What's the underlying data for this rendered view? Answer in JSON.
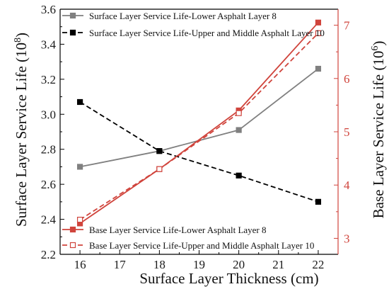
{
  "chart_data": {
    "type": "line",
    "xlabel": "Surface Layer Thickness (cm)",
    "ylabel_left": "Surface Layer Service Life (10",
    "ylabel_left_exp": "8",
    "ylabel_left_close": ")",
    "ylabel_right": "Base Layer Service Life (10",
    "ylabel_right_exp": "6",
    "ylabel_right_close": ")",
    "xlim": [
      15.5,
      22.5
    ],
    "xticks": [
      16,
      17,
      18,
      19,
      20,
      21,
      22
    ],
    "ylim_left": [
      2.2,
      3.6
    ],
    "yticks_left": [
      "2.2",
      "2.4",
      "2.6",
      "2.8",
      "3.0",
      "3.2",
      "3.4",
      "3.6"
    ],
    "ylim_right": [
      2.7,
      7.3
    ],
    "yticks_right": [
      "3",
      "4",
      "5",
      "6",
      "7"
    ],
    "x": [
      16,
      18,
      20,
      22
    ],
    "series": [
      {
        "name": "Surface Layer Service Life-Lower Asphalt Layer 8",
        "axis": "left",
        "values": [
          2.7,
          2.79,
          2.91,
          3.26
        ],
        "color": "#808080",
        "dash": "solid",
        "marker": "filled-square"
      },
      {
        "name": "Surface Layer Service Life-Upper and Middle Asphalt Layer 10",
        "axis": "left",
        "values": [
          3.07,
          2.79,
          2.65,
          2.5
        ],
        "color": "#000000",
        "dash": "dashed",
        "marker": "filled-square"
      },
      {
        "name": "Base Layer Service Life-Lower Asphalt Layer 8",
        "axis": "right",
        "values": [
          3.28,
          4.3,
          5.4,
          7.05
        ],
        "color": "#d0443c",
        "dash": "solid",
        "marker": "filled-square"
      },
      {
        "name": "Base Layer Service Life-Upper and Middle Asphalt Layer 10",
        "axis": "right",
        "values": [
          3.35,
          4.3,
          5.35,
          6.85
        ],
        "color": "#d0443c",
        "dash": "dashed",
        "marker": "open-square"
      }
    ],
    "legend_top": "top-left",
    "legend_bottom": "bottom-left",
    "grid": false
  }
}
